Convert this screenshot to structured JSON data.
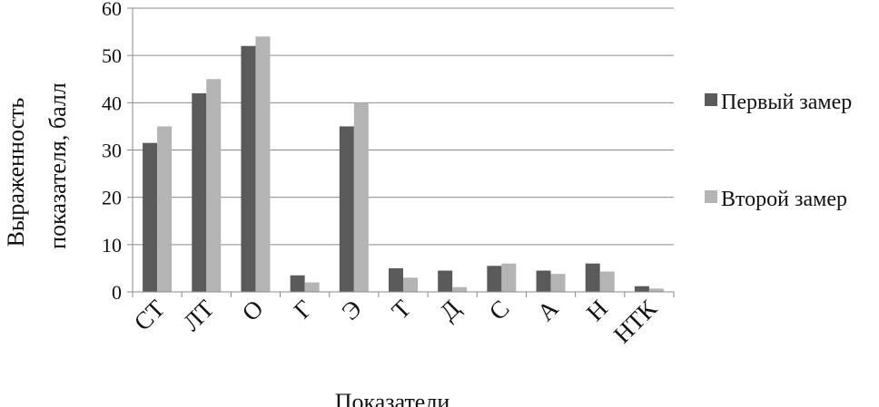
{
  "chart_data": {
    "type": "bar",
    "categories": [
      "СТ",
      "ЛТ",
      "О",
      "Г",
      "Э",
      "Т",
      "Д",
      "С",
      "А",
      "Н",
      "НТК"
    ],
    "series": [
      {
        "name": "Первый замер",
        "values": [
          31.5,
          42,
          52,
          3.5,
          35,
          5,
          4.5,
          5.5,
          4.5,
          6,
          1.2
        ],
        "color": "#5a5a5a"
      },
      {
        "name": "Второй замер",
        "values": [
          35,
          45,
          54,
          2,
          40,
          3,
          1,
          6,
          3.8,
          4.3,
          0.7
        ],
        "color": "#b4b4b4"
      }
    ],
    "ylim": [
      0,
      60
    ],
    "yticks": [
      0,
      10,
      20,
      30,
      40,
      50,
      60
    ],
    "ylabel_lines": [
      "Выраженность",
      "показателя, балл"
    ],
    "xlabel": "Показатели",
    "grid": true,
    "legend": "right"
  }
}
